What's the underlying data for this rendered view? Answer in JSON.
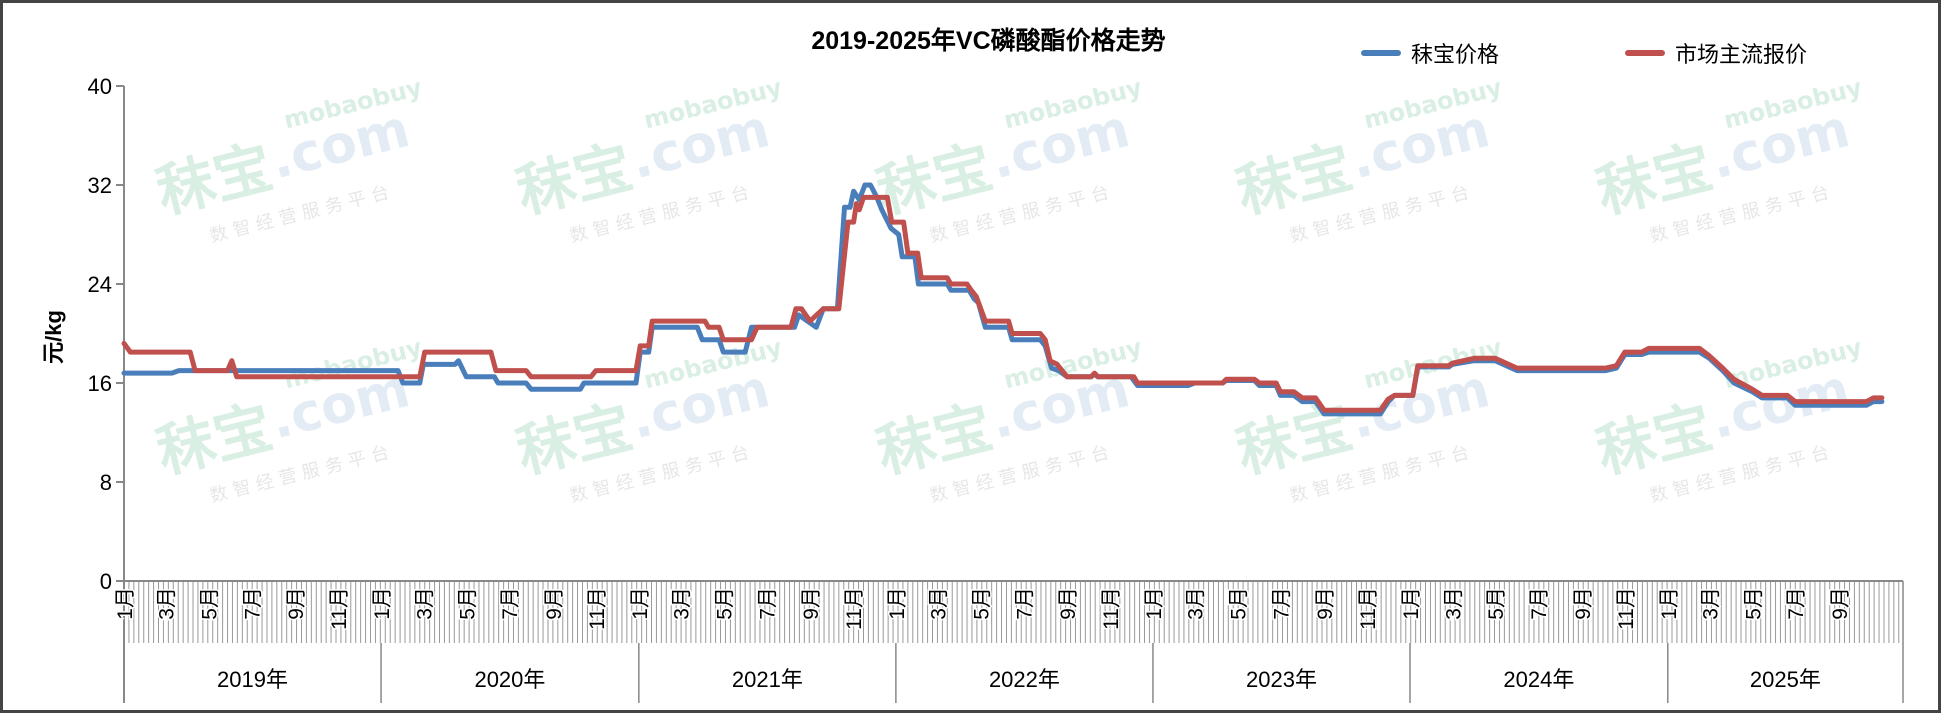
{
  "chart_data": {
    "type": "line",
    "title": "2019-2025年VC磷酸酯价格走势",
    "xlabel": "",
    "ylabel": "元/kg",
    "ylim": [
      0,
      40
    ],
    "yticks": [
      0,
      8,
      16,
      24,
      32,
      40
    ],
    "xlim": [
      "2019-01-01",
      "2025-12-01"
    ],
    "x_month_labels": [
      "1月",
      "3月",
      "5月",
      "7月",
      "9月",
      "11月"
    ],
    "x_year_labels": [
      "2019年",
      "2020年",
      "2021年",
      "2022年",
      "2023年",
      "2024年",
      "2025年"
    ],
    "grid": false,
    "legend_position": "top-right",
    "series": [
      {
        "name": "秣宝价格",
        "color": "#4a7ebb",
        "points": [
          [
            "2019-01-01",
            16.8
          ],
          [
            "2019-03-10",
            16.8
          ],
          [
            "2019-03-20",
            17.0
          ],
          [
            "2020-01-25",
            17.0
          ],
          [
            "2020-02-01",
            16.0
          ],
          [
            "2020-02-25",
            16.0
          ],
          [
            "2020-03-01",
            17.5
          ],
          [
            "2020-04-15",
            17.5
          ],
          [
            "2020-04-20",
            17.8
          ],
          [
            "2020-05-01",
            16.5
          ],
          [
            "2020-06-10",
            16.5
          ],
          [
            "2020-06-15",
            16.0
          ],
          [
            "2020-07-25",
            16.0
          ],
          [
            "2020-08-01",
            15.5
          ],
          [
            "2020-10-10",
            15.5
          ],
          [
            "2020-10-15",
            16.0
          ],
          [
            "2020-12-28",
            16.0
          ],
          [
            "2021-01-03",
            18.5
          ],
          [
            "2021-01-15",
            18.5
          ],
          [
            "2021-01-20",
            20.5
          ],
          [
            "2021-03-25",
            20.5
          ],
          [
            "2021-04-01",
            19.5
          ],
          [
            "2021-04-25",
            19.5
          ],
          [
            "2021-05-01",
            18.5
          ],
          [
            "2021-06-01",
            18.5
          ],
          [
            "2021-06-10",
            20.5
          ],
          [
            "2021-08-10",
            20.5
          ],
          [
            "2021-08-16",
            21.5
          ],
          [
            "2021-09-10",
            20.5
          ],
          [
            "2021-09-20",
            22.0
          ],
          [
            "2021-10-10",
            22.0
          ],
          [
            "2021-10-20",
            30.2
          ],
          [
            "2021-10-28",
            30.2
          ],
          [
            "2021-11-02",
            31.5
          ],
          [
            "2021-11-10",
            30.8
          ],
          [
            "2021-11-18",
            32.0
          ],
          [
            "2021-11-26",
            32.0
          ],
          [
            "2021-12-05",
            31.0
          ],
          [
            "2021-12-12",
            30.0
          ],
          [
            "2021-12-25",
            28.5
          ],
          [
            "2022-01-05",
            28.0
          ],
          [
            "2022-01-10",
            26.2
          ],
          [
            "2022-01-28",
            26.2
          ],
          [
            "2022-02-02",
            24.0
          ],
          [
            "2022-03-15",
            24.0
          ],
          [
            "2022-03-20",
            23.5
          ],
          [
            "2022-04-15",
            23.5
          ],
          [
            "2022-04-22",
            22.8
          ],
          [
            "2022-04-28",
            22.5
          ],
          [
            "2022-05-08",
            20.5
          ],
          [
            "2022-06-10",
            20.5
          ],
          [
            "2022-06-15",
            19.5
          ],
          [
            "2022-07-25",
            19.5
          ],
          [
            "2022-08-01",
            19.0
          ],
          [
            "2022-08-10",
            17.2
          ],
          [
            "2022-08-20",
            17.0
          ],
          [
            "2022-09-01",
            16.5
          ],
          [
            "2022-10-05",
            16.5
          ],
          [
            "2022-10-10",
            16.7
          ],
          [
            "2022-10-15",
            16.5
          ],
          [
            "2022-12-01",
            16.5
          ],
          [
            "2022-12-10",
            15.8
          ],
          [
            "2023-02-20",
            15.8
          ],
          [
            "2023-03-01",
            16.0
          ],
          [
            "2023-04-10",
            16.0
          ],
          [
            "2023-04-15",
            16.2
          ],
          [
            "2023-05-25",
            16.2
          ],
          [
            "2023-06-01",
            15.8
          ],
          [
            "2023-06-25",
            15.8
          ],
          [
            "2023-07-01",
            15.0
          ],
          [
            "2023-07-20",
            15.0
          ],
          [
            "2023-08-01",
            14.5
          ],
          [
            "2023-08-20",
            14.5
          ],
          [
            "2023-09-01",
            13.5
          ],
          [
            "2023-11-20",
            13.5
          ],
          [
            "2023-12-01",
            14.5
          ],
          [
            "2023-12-10",
            15.0
          ],
          [
            "2024-01-05",
            15.0
          ],
          [
            "2024-01-12",
            17.3
          ],
          [
            "2024-02-25",
            17.3
          ],
          [
            "2024-03-01",
            17.5
          ],
          [
            "2024-04-01",
            17.8
          ],
          [
            "2024-05-01",
            17.8
          ],
          [
            "2024-06-01",
            17.0
          ],
          [
            "2024-10-05",
            17.0
          ],
          [
            "2024-10-20",
            17.2
          ],
          [
            "2024-11-01",
            18.3
          ],
          [
            "2024-11-25",
            18.3
          ],
          [
            "2024-12-05",
            18.5
          ],
          [
            "2025-02-15",
            18.5
          ],
          [
            "2025-03-01",
            18.0
          ],
          [
            "2025-03-20",
            17.0
          ],
          [
            "2025-04-05",
            16.0
          ],
          [
            "2025-05-01",
            15.3
          ],
          [
            "2025-05-15",
            14.8
          ],
          [
            "2025-06-20",
            14.8
          ],
          [
            "2025-07-01",
            14.2
          ],
          [
            "2025-10-10",
            14.2
          ],
          [
            "2025-10-20",
            14.5
          ],
          [
            "2025-11-01",
            14.5
          ]
        ]
      },
      {
        "name": "市场主流报价",
        "color": "#c0504d",
        "points": [
          [
            "2019-01-01",
            19.2
          ],
          [
            "2019-01-10",
            18.5
          ],
          [
            "2019-04-05",
            18.5
          ],
          [
            "2019-04-12",
            17.0
          ],
          [
            "2019-05-28",
            17.0
          ],
          [
            "2019-06-03",
            17.8
          ],
          [
            "2019-06-10",
            16.5
          ],
          [
            "2020-02-25",
            16.5
          ],
          [
            "2020-03-03",
            18.5
          ],
          [
            "2020-06-05",
            18.5
          ],
          [
            "2020-06-12",
            17.0
          ],
          [
            "2020-07-25",
            17.0
          ],
          [
            "2020-08-01",
            16.5
          ],
          [
            "2020-10-25",
            16.5
          ],
          [
            "2020-11-01",
            17.0
          ],
          [
            "2020-12-28",
            17.0
          ],
          [
            "2021-01-03",
            19.0
          ],
          [
            "2021-01-15",
            19.0
          ],
          [
            "2021-01-20",
            21.0
          ],
          [
            "2021-04-05",
            21.0
          ],
          [
            "2021-04-10",
            20.5
          ],
          [
            "2021-04-25",
            20.5
          ],
          [
            "2021-05-01",
            19.5
          ],
          [
            "2021-06-10",
            19.5
          ],
          [
            "2021-06-18",
            20.5
          ],
          [
            "2021-08-05",
            20.5
          ],
          [
            "2021-08-12",
            22.0
          ],
          [
            "2021-08-20",
            22.0
          ],
          [
            "2021-09-01",
            21.0
          ],
          [
            "2021-09-20",
            22.0
          ],
          [
            "2021-10-12",
            22.0
          ],
          [
            "2021-10-25",
            29.0
          ],
          [
            "2021-11-02",
            29.0
          ],
          [
            "2021-11-06",
            30.5
          ],
          [
            "2021-11-10",
            30.0
          ],
          [
            "2021-11-16",
            31.0
          ],
          [
            "2021-12-20",
            31.0
          ],
          [
            "2021-12-26",
            29.0
          ],
          [
            "2022-01-12",
            29.0
          ],
          [
            "2022-01-18",
            26.5
          ],
          [
            "2022-02-01",
            26.5
          ],
          [
            "2022-02-06",
            24.5
          ],
          [
            "2022-03-15",
            24.5
          ],
          [
            "2022-03-20",
            24.0
          ],
          [
            "2022-04-12",
            24.0
          ],
          [
            "2022-04-18",
            23.5
          ],
          [
            "2022-04-25",
            23.0
          ],
          [
            "2022-05-08",
            21.0
          ],
          [
            "2022-06-10",
            21.0
          ],
          [
            "2022-06-15",
            20.0
          ],
          [
            "2022-07-25",
            20.0
          ],
          [
            "2022-08-01",
            19.5
          ],
          [
            "2022-08-08",
            17.8
          ],
          [
            "2022-08-18",
            17.5
          ],
          [
            "2022-09-01",
            16.5
          ],
          [
            "2022-10-05",
            16.5
          ],
          [
            "2022-10-10",
            16.8
          ],
          [
            "2022-10-15",
            16.5
          ],
          [
            "2022-12-05",
            16.5
          ],
          [
            "2022-12-10",
            16.0
          ],
          [
            "2023-02-20",
            16.0
          ],
          [
            "2023-03-01",
            16.0
          ],
          [
            "2023-04-10",
            16.0
          ],
          [
            "2023-04-15",
            16.3
          ],
          [
            "2023-05-25",
            16.3
          ],
          [
            "2023-06-01",
            16.0
          ],
          [
            "2023-06-25",
            16.0
          ],
          [
            "2023-07-01",
            15.3
          ],
          [
            "2023-07-20",
            15.3
          ],
          [
            "2023-08-01",
            14.8
          ],
          [
            "2023-08-20",
            14.8
          ],
          [
            "2023-09-01",
            13.8
          ],
          [
            "2023-11-20",
            13.8
          ],
          [
            "2023-12-01",
            14.7
          ],
          [
            "2023-12-10",
            15.0
          ],
          [
            "2024-01-05",
            15.0
          ],
          [
            "2024-01-12",
            17.4
          ],
          [
            "2024-02-25",
            17.4
          ],
          [
            "2024-03-01",
            17.6
          ],
          [
            "2024-04-01",
            18.0
          ],
          [
            "2024-05-01",
            18.0
          ],
          [
            "2024-06-01",
            17.2
          ],
          [
            "2024-10-05",
            17.2
          ],
          [
            "2024-10-20",
            17.4
          ],
          [
            "2024-11-01",
            18.5
          ],
          [
            "2024-11-25",
            18.5
          ],
          [
            "2024-12-05",
            18.8
          ],
          [
            "2025-02-15",
            18.8
          ],
          [
            "2025-03-01",
            18.2
          ],
          [
            "2025-03-20",
            17.2
          ],
          [
            "2025-04-05",
            16.3
          ],
          [
            "2025-05-01",
            15.5
          ],
          [
            "2025-05-15",
            15.0
          ],
          [
            "2025-06-20",
            15.0
          ],
          [
            "2025-07-01",
            14.5
          ],
          [
            "2025-10-10",
            14.5
          ],
          [
            "2025-10-20",
            14.8
          ],
          [
            "2025-11-01",
            14.8
          ]
        ]
      }
    ]
  },
  "watermark": {
    "brand": "秣宝",
    "domain": ".com",
    "site": "mobaobuy",
    "slogan": "数 智 经 营 服 务 平 台"
  }
}
